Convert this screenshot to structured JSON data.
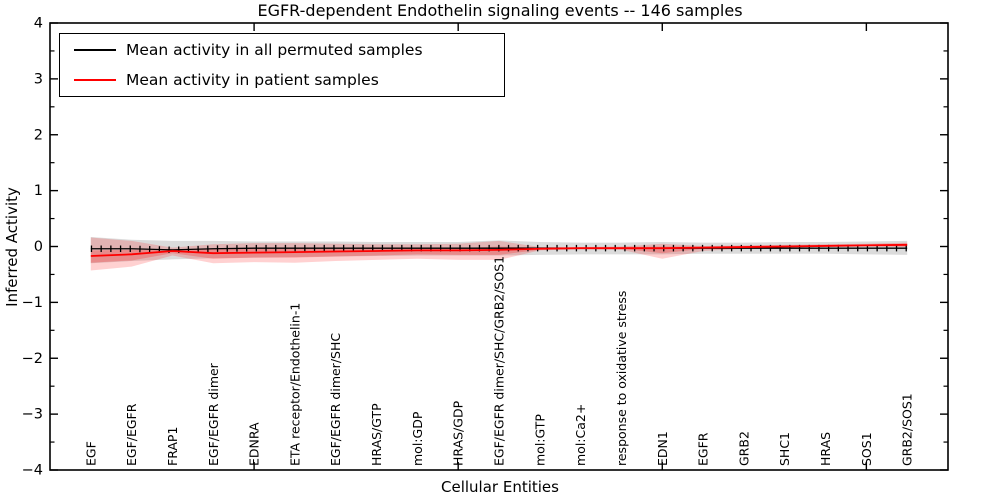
{
  "title": "EGFR-dependent Endothelin signaling events -- 146 samples",
  "chart_data": {
    "type": "line",
    "title": "EGFR-dependent Endothelin signaling events -- 146 samples",
    "xlabel": "Cellular Entities",
    "ylabel": "Inferred Activity",
    "ylim": [
      -4,
      4
    ],
    "yticks_major": [
      -4,
      -3,
      -2,
      -1,
      0,
      1,
      2,
      3,
      4
    ],
    "ytick_labels": [
      "−4",
      "−3",
      "−2",
      "−1",
      "0",
      "1",
      "2",
      "3",
      "4"
    ],
    "yticks_minor": [
      -3.5,
      -2.5,
      -1.5,
      -0.5,
      0.5,
      1.5,
      2.5,
      3.5
    ],
    "xtick_marker_indices": [
      4,
      9,
      14,
      19
    ],
    "grid": false,
    "legend_position": "upper left",
    "categories": [
      "EGF",
      "EGF/EGFR",
      "FRAP1",
      "EGF/EGFR dimer",
      "EDNRA",
      "ETA receptor/Endothelin-1",
      "EGF/EGFR dimer/SHC",
      "HRAS/GTP",
      "mol:GDP",
      "HRAS/GDP",
      "EGF/EGFR dimer/SHC/GRB2/SOS1",
      "mol:GTP",
      "mol:Ca2+",
      "response to oxidative stress",
      "EDN1",
      "EGFR",
      "GRB2",
      "SHC1",
      "HRAS",
      "SOS1",
      "GRB2/SOS1"
    ],
    "series": [
      {
        "name": "Mean activity in all permuted samples",
        "color": "#000000",
        "values": [
          -0.04,
          -0.04,
          -0.06,
          -0.04,
          -0.03,
          -0.03,
          -0.03,
          -0.03,
          -0.03,
          -0.03,
          -0.03,
          -0.03,
          -0.03,
          -0.03,
          -0.03,
          -0.03,
          -0.03,
          -0.03,
          -0.03,
          -0.03,
          -0.03
        ],
        "band": {
          "color": "rgba(125,125,125,0.28)",
          "upper": [
            0.17,
            0.12,
            0.1,
            0.1,
            0.09,
            0.09,
            0.09,
            0.08,
            0.08,
            0.08,
            0.11,
            0.08,
            0.07,
            0.07,
            0.08,
            0.07,
            0.07,
            0.08,
            0.08,
            0.09,
            0.1
          ],
          "lower": [
            -0.3,
            -0.26,
            -0.23,
            -0.21,
            -0.2,
            -0.19,
            -0.18,
            -0.17,
            -0.16,
            -0.16,
            -0.16,
            -0.15,
            -0.14,
            -0.14,
            -0.14,
            -0.13,
            -0.13,
            -0.13,
            -0.13,
            -0.14,
            -0.15
          ]
        }
      },
      {
        "name": "Mean activity in patient samples",
        "color": "#ff0000",
        "values": [
          -0.17,
          -0.14,
          -0.08,
          -0.12,
          -0.11,
          -0.1,
          -0.09,
          -0.08,
          -0.07,
          -0.07,
          -0.06,
          -0.04,
          -0.03,
          -0.03,
          -0.03,
          -0.02,
          -0.01,
          0.0,
          0.01,
          0.02,
          0.03
        ],
        "band_outer": {
          "color": "rgba(255,0,0,0.18)",
          "upper": [
            0.16,
            0.1,
            -0.02,
            0.04,
            0.06,
            0.06,
            0.05,
            0.04,
            0.04,
            0.05,
            0.1,
            -0.01,
            -0.01,
            0.0,
            0.05,
            0.01,
            0.02,
            0.03,
            0.04,
            0.05,
            0.07
          ],
          "lower": [
            -0.43,
            -0.36,
            -0.16,
            -0.3,
            -0.28,
            -0.29,
            -0.26,
            -0.24,
            -0.22,
            -0.24,
            -0.24,
            -0.07,
            -0.05,
            -0.06,
            -0.22,
            -0.08,
            -0.04,
            -0.02,
            -0.01,
            0.0,
            -0.01
          ]
        },
        "band_inner": {
          "color": "rgba(255,0,0,0.22)",
          "upper": [
            -0.07,
            -0.06,
            -0.05,
            -0.05,
            -0.04,
            -0.04,
            -0.04,
            -0.03,
            -0.03,
            -0.03,
            0.0,
            -0.02,
            -0.02,
            -0.01,
            0.0,
            0.0,
            0.01,
            0.02,
            0.03,
            0.04,
            0.05
          ],
          "lower": [
            -0.29,
            -0.25,
            -0.12,
            -0.22,
            -0.2,
            -0.2,
            -0.18,
            -0.16,
            -0.14,
            -0.15,
            -0.15,
            -0.06,
            -0.04,
            -0.04,
            -0.12,
            -0.04,
            -0.02,
            -0.01,
            0.0,
            0.01,
            0.0
          ]
        }
      }
    ]
  }
}
